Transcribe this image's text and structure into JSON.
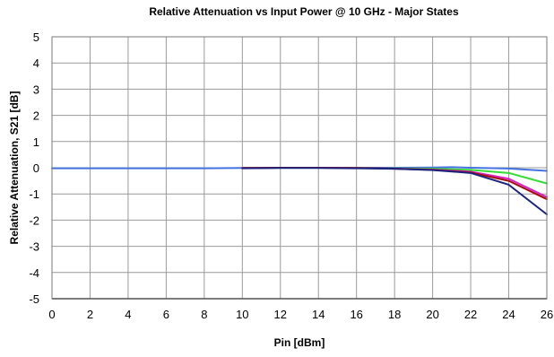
{
  "chart_data": {
    "type": "line",
    "title": "Relative Attenuation vs Input Power @ 10 GHz - Major States",
    "xlabel": "Pin [dBm]",
    "ylabel": "Relative Attenuation, S21 [dB]",
    "xlim": [
      0,
      26
    ],
    "ylim": [
      -5,
      5
    ],
    "xticks": [
      0,
      2,
      4,
      6,
      8,
      10,
      12,
      14,
      16,
      18,
      20,
      22,
      24,
      26
    ],
    "yticks": [
      5,
      4,
      3,
      2,
      1,
      0,
      -1,
      -2,
      -3,
      -4,
      -5
    ],
    "grid": true,
    "legend": "none",
    "series": [
      {
        "color": "#4472e0",
        "x": [
          0,
          2,
          4,
          6,
          8,
          10,
          12,
          14,
          16,
          18,
          20,
          21,
          22,
          24,
          26
        ],
        "y": [
          -0.02,
          -0.02,
          -0.02,
          -0.02,
          -0.02,
          -0.01,
          0,
          0,
          0,
          0,
          0.01,
          0.02,
          0,
          -0.03,
          -0.12
        ]
      },
      {
        "color": "#33dd33",
        "x": [
          10,
          12,
          14,
          16,
          18,
          20,
          22,
          24,
          26
        ],
        "y": [
          -0.01,
          0,
          0,
          -0.01,
          -0.02,
          -0.04,
          -0.08,
          -0.2,
          -0.6
        ]
      },
      {
        "color": "#e020c0",
        "x": [
          10,
          12,
          14,
          16,
          18,
          20,
          22,
          24,
          26
        ],
        "y": [
          -0.01,
          0,
          0,
          -0.01,
          -0.03,
          -0.07,
          -0.15,
          -0.42,
          -1.12
        ]
      },
      {
        "color": "#a01010",
        "x": [
          10,
          12,
          14,
          16,
          18,
          20,
          22,
          24,
          26
        ],
        "y": [
          -0.01,
          0,
          0,
          -0.01,
          -0.04,
          -0.08,
          -0.18,
          -0.5,
          -1.2
        ]
      },
      {
        "color": "#1a237e",
        "x": [
          10,
          12,
          14,
          16,
          18,
          20,
          22,
          24,
          26
        ],
        "y": [
          -0.02,
          -0.01,
          -0.01,
          -0.02,
          -0.04,
          -0.09,
          -0.2,
          -0.65,
          -1.78
        ]
      }
    ]
  }
}
